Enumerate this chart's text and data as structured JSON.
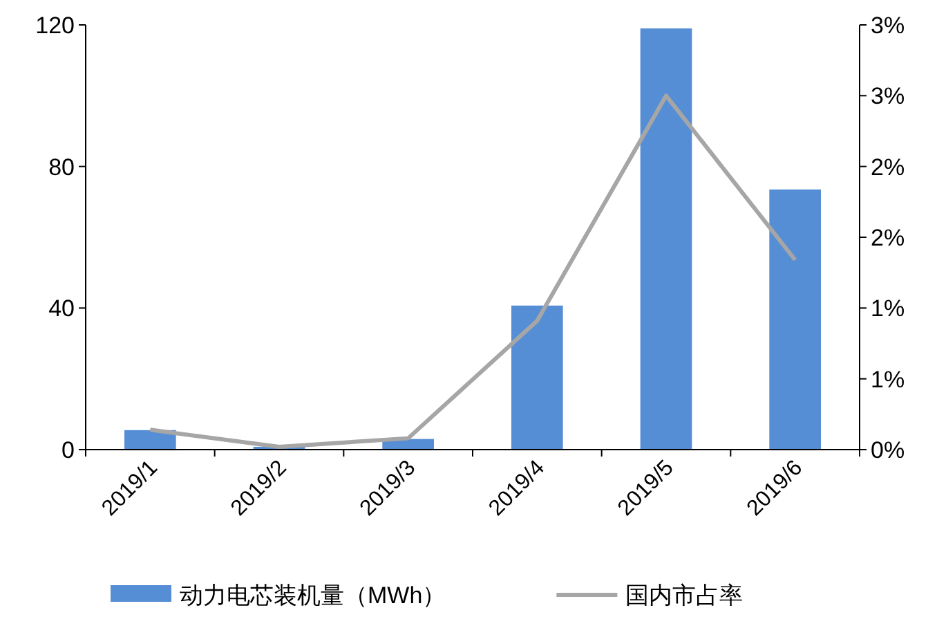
{
  "chart_data": {
    "type": "bar",
    "categories": [
      "2019/1",
      "2019/2",
      "2019/3",
      "2019/4",
      "2019/5",
      "2019/6"
    ],
    "series": [
      {
        "name": "动力电芯装机量（MWh）",
        "color": "#558ed5",
        "values": [
          5.5,
          0.8,
          3,
          40.7,
          119,
          73.5
        ]
      },
      {
        "name": "国内市占率",
        "type": "line",
        "axis": "y2",
        "color": "#a6a6a6",
        "values": [
          0.14,
          0.02,
          0.08,
          0.91,
          2.5,
          1.34
        ]
      }
    ],
    "ylim": [
      0,
      120
    ],
    "yticks": [
      0,
      40,
      80,
      120
    ],
    "y2lim": [
      0,
      3
    ],
    "y2ticks": [
      {
        "value": 0,
        "label": "0%"
      },
      {
        "value": 0.5,
        "label": "1%"
      },
      {
        "value": 1,
        "label": "1%"
      },
      {
        "value": 1.5,
        "label": "2%"
      },
      {
        "value": 2,
        "label": "2%"
      },
      {
        "value": 2.5,
        "label": "3%"
      },
      {
        "value": 3,
        "label": "3%"
      }
    ],
    "legend": "bottom",
    "grid": false,
    "marker": "none"
  }
}
